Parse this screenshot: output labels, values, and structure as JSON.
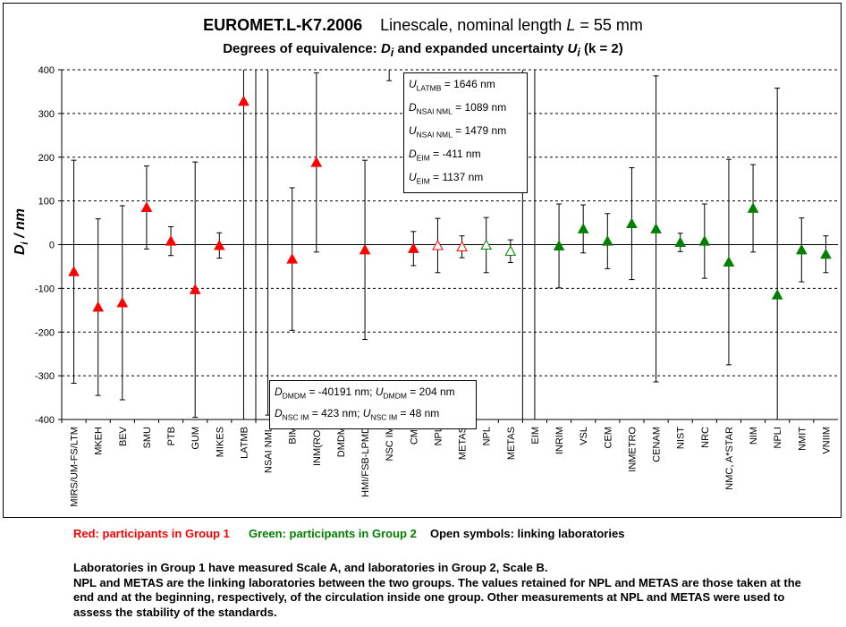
{
  "header": {
    "title_bold": "EUROMET.L-K7.2006",
    "title_rest": "Linescale, nominal length",
    "title_L": "L",
    "title_value": "= 55 mm",
    "subtitle_pre": "Degrees of equivalence:",
    "subtitle_mid": "and expanded uncertainty",
    "subtitle_k": "(k = 2)"
  },
  "info_box_top": [
    "U LATMB = 1646 nm",
    "D NSAI NML = 1089 nm",
    "U NSAI NML = 1479 nm",
    "D EIM = -411 nm",
    "U EIM = 1137 nm"
  ],
  "info_box_bottom": [
    "D DMDM = -40191 nm; U DMDM = 204 nm",
    "D NSC IM = 423 nm; U NSC IM = 48 nm"
  ],
  "legend": {
    "red": "Red: participants in Group 1",
    "green": "Green: participants in Group 2",
    "open": "Open symbols: linking laboratories"
  },
  "notes": {
    "line1": "Laboratories in Group 1 have measured Scale A, and laboratories in Group 2, Scale B.",
    "line2": "NPL and METAS are the linking laboratories between the two groups. The values retained for NPL and METAS are those taken at the end and at the beginning, respectively, of the circulation inside one group. Other measurements at NPL and METAS were used to assess the stability of the standards."
  },
  "colors": {
    "group1": "#ff0000",
    "group2": "#008000",
    "grid": "#000000"
  },
  "chart_data": {
    "type": "scatter",
    "ylabel": "Di / nm",
    "ylim": [
      -400,
      400
    ],
    "yticks": [
      -400,
      -300,
      -200,
      -100,
      0,
      100,
      200,
      300,
      400
    ],
    "grid": "dashed horizontal",
    "categories": [
      "MIRS/UM-FS/LTM",
      "MKEH",
      "BEV",
      "SMU",
      "PTB",
      "GUM",
      "MIKES",
      "LATMB",
      "NSAI NML",
      "BIM",
      "INM(RO)",
      "DMDM",
      "HMI/FSB-LPMD",
      "NSC IM",
      "CMI",
      "NPL",
      "METAS",
      "NPL",
      "METAS",
      "EIM",
      "INRIM",
      "VSL",
      "CEM",
      "INMETRO",
      "CENAM",
      "NIST",
      "NRC",
      "NMC, A*STAR",
      "NIM",
      "NPLI",
      "NMIT",
      "VNIIM"
    ],
    "points": [
      {
        "lab": "MIRS/UM-FS/LTM",
        "D": -62,
        "U": 255,
        "group": 1,
        "open": false
      },
      {
        "lab": "MKEH",
        "D": -143,
        "U": 202,
        "group": 1,
        "open": false
      },
      {
        "lab": "BEV",
        "D": -133,
        "U": 222,
        "group": 1,
        "open": false
      },
      {
        "lab": "SMU",
        "D": 85,
        "U": 95,
        "group": 1,
        "open": false
      },
      {
        "lab": "PTB",
        "D": 8,
        "U": 33,
        "group": 1,
        "open": false
      },
      {
        "lab": "GUM",
        "D": -103,
        "U": 292,
        "group": 1,
        "open": false
      },
      {
        "lab": "MIKES",
        "D": -2,
        "U": 29,
        "group": 1,
        "open": false
      },
      {
        "lab": "LATMB",
        "D": 328,
        "U": 1646,
        "group": 1,
        "open": false
      },
      {
        "lab": "NSAI NML",
        "D": 1089,
        "U": 1479,
        "group": 1,
        "open": false
      },
      {
        "lab": "BIM",
        "D": -33,
        "U": 163,
        "group": 1,
        "open": false
      },
      {
        "lab": "INM(RO)",
        "D": 188,
        "U": 205,
        "group": 1,
        "open": false
      },
      {
        "lab": "DMDM",
        "D": -40191,
        "U": 204,
        "group": 1,
        "open": false
      },
      {
        "lab": "HMI/FSB-LPMD",
        "D": -12,
        "U": 205,
        "group": 1,
        "open": false
      },
      {
        "lab": "NSC IM",
        "D": 423,
        "U": 48,
        "group": 1,
        "open": false
      },
      {
        "lab": "CMI",
        "D": -9,
        "U": 39,
        "group": 1,
        "open": false
      },
      {
        "lab": "NPL",
        "D": -2,
        "U": 62,
        "group": 1,
        "open": true
      },
      {
        "lab": "METAS",
        "D": -5,
        "U": 25,
        "group": 1,
        "open": true
      },
      {
        "lab": "NPL",
        "D": -1,
        "U": 63,
        "group": 2,
        "open": true
      },
      {
        "lab": "METAS",
        "D": -15,
        "U": 26,
        "group": 2,
        "open": true
      },
      {
        "lab": "EIM",
        "D": -411,
        "U": 1137,
        "group": 2,
        "open": false
      },
      {
        "lab": "INRIM",
        "D": -3,
        "U": 96,
        "group": 2,
        "open": false
      },
      {
        "lab": "VSL",
        "D": 36,
        "U": 55,
        "group": 2,
        "open": false
      },
      {
        "lab": "CEM",
        "D": 8,
        "U": 63,
        "group": 2,
        "open": false
      },
      {
        "lab": "INMETRO",
        "D": 48,
        "U": 128,
        "group": 2,
        "open": false
      },
      {
        "lab": "CENAM",
        "D": 36,
        "U": 350,
        "group": 2,
        "open": false
      },
      {
        "lab": "NIST",
        "D": 5,
        "U": 21,
        "group": 2,
        "open": false
      },
      {
        "lab": "NRC",
        "D": 8,
        "U": 85,
        "group": 2,
        "open": false
      },
      {
        "lab": "NMC, A*STAR",
        "D": -40,
        "U": 235,
        "group": 2,
        "open": false
      },
      {
        "lab": "NIM",
        "D": 83,
        "U": 100,
        "group": 2,
        "open": false
      },
      {
        "lab": "NPLI",
        "D": -115,
        "U": 473,
        "group": 2,
        "open": false
      },
      {
        "lab": "NMIT",
        "D": -12,
        "U": 73,
        "group": 2,
        "open": false
      },
      {
        "lab": "VNIIM",
        "D": -22,
        "U": 42,
        "group": 2,
        "open": false
      }
    ]
  }
}
